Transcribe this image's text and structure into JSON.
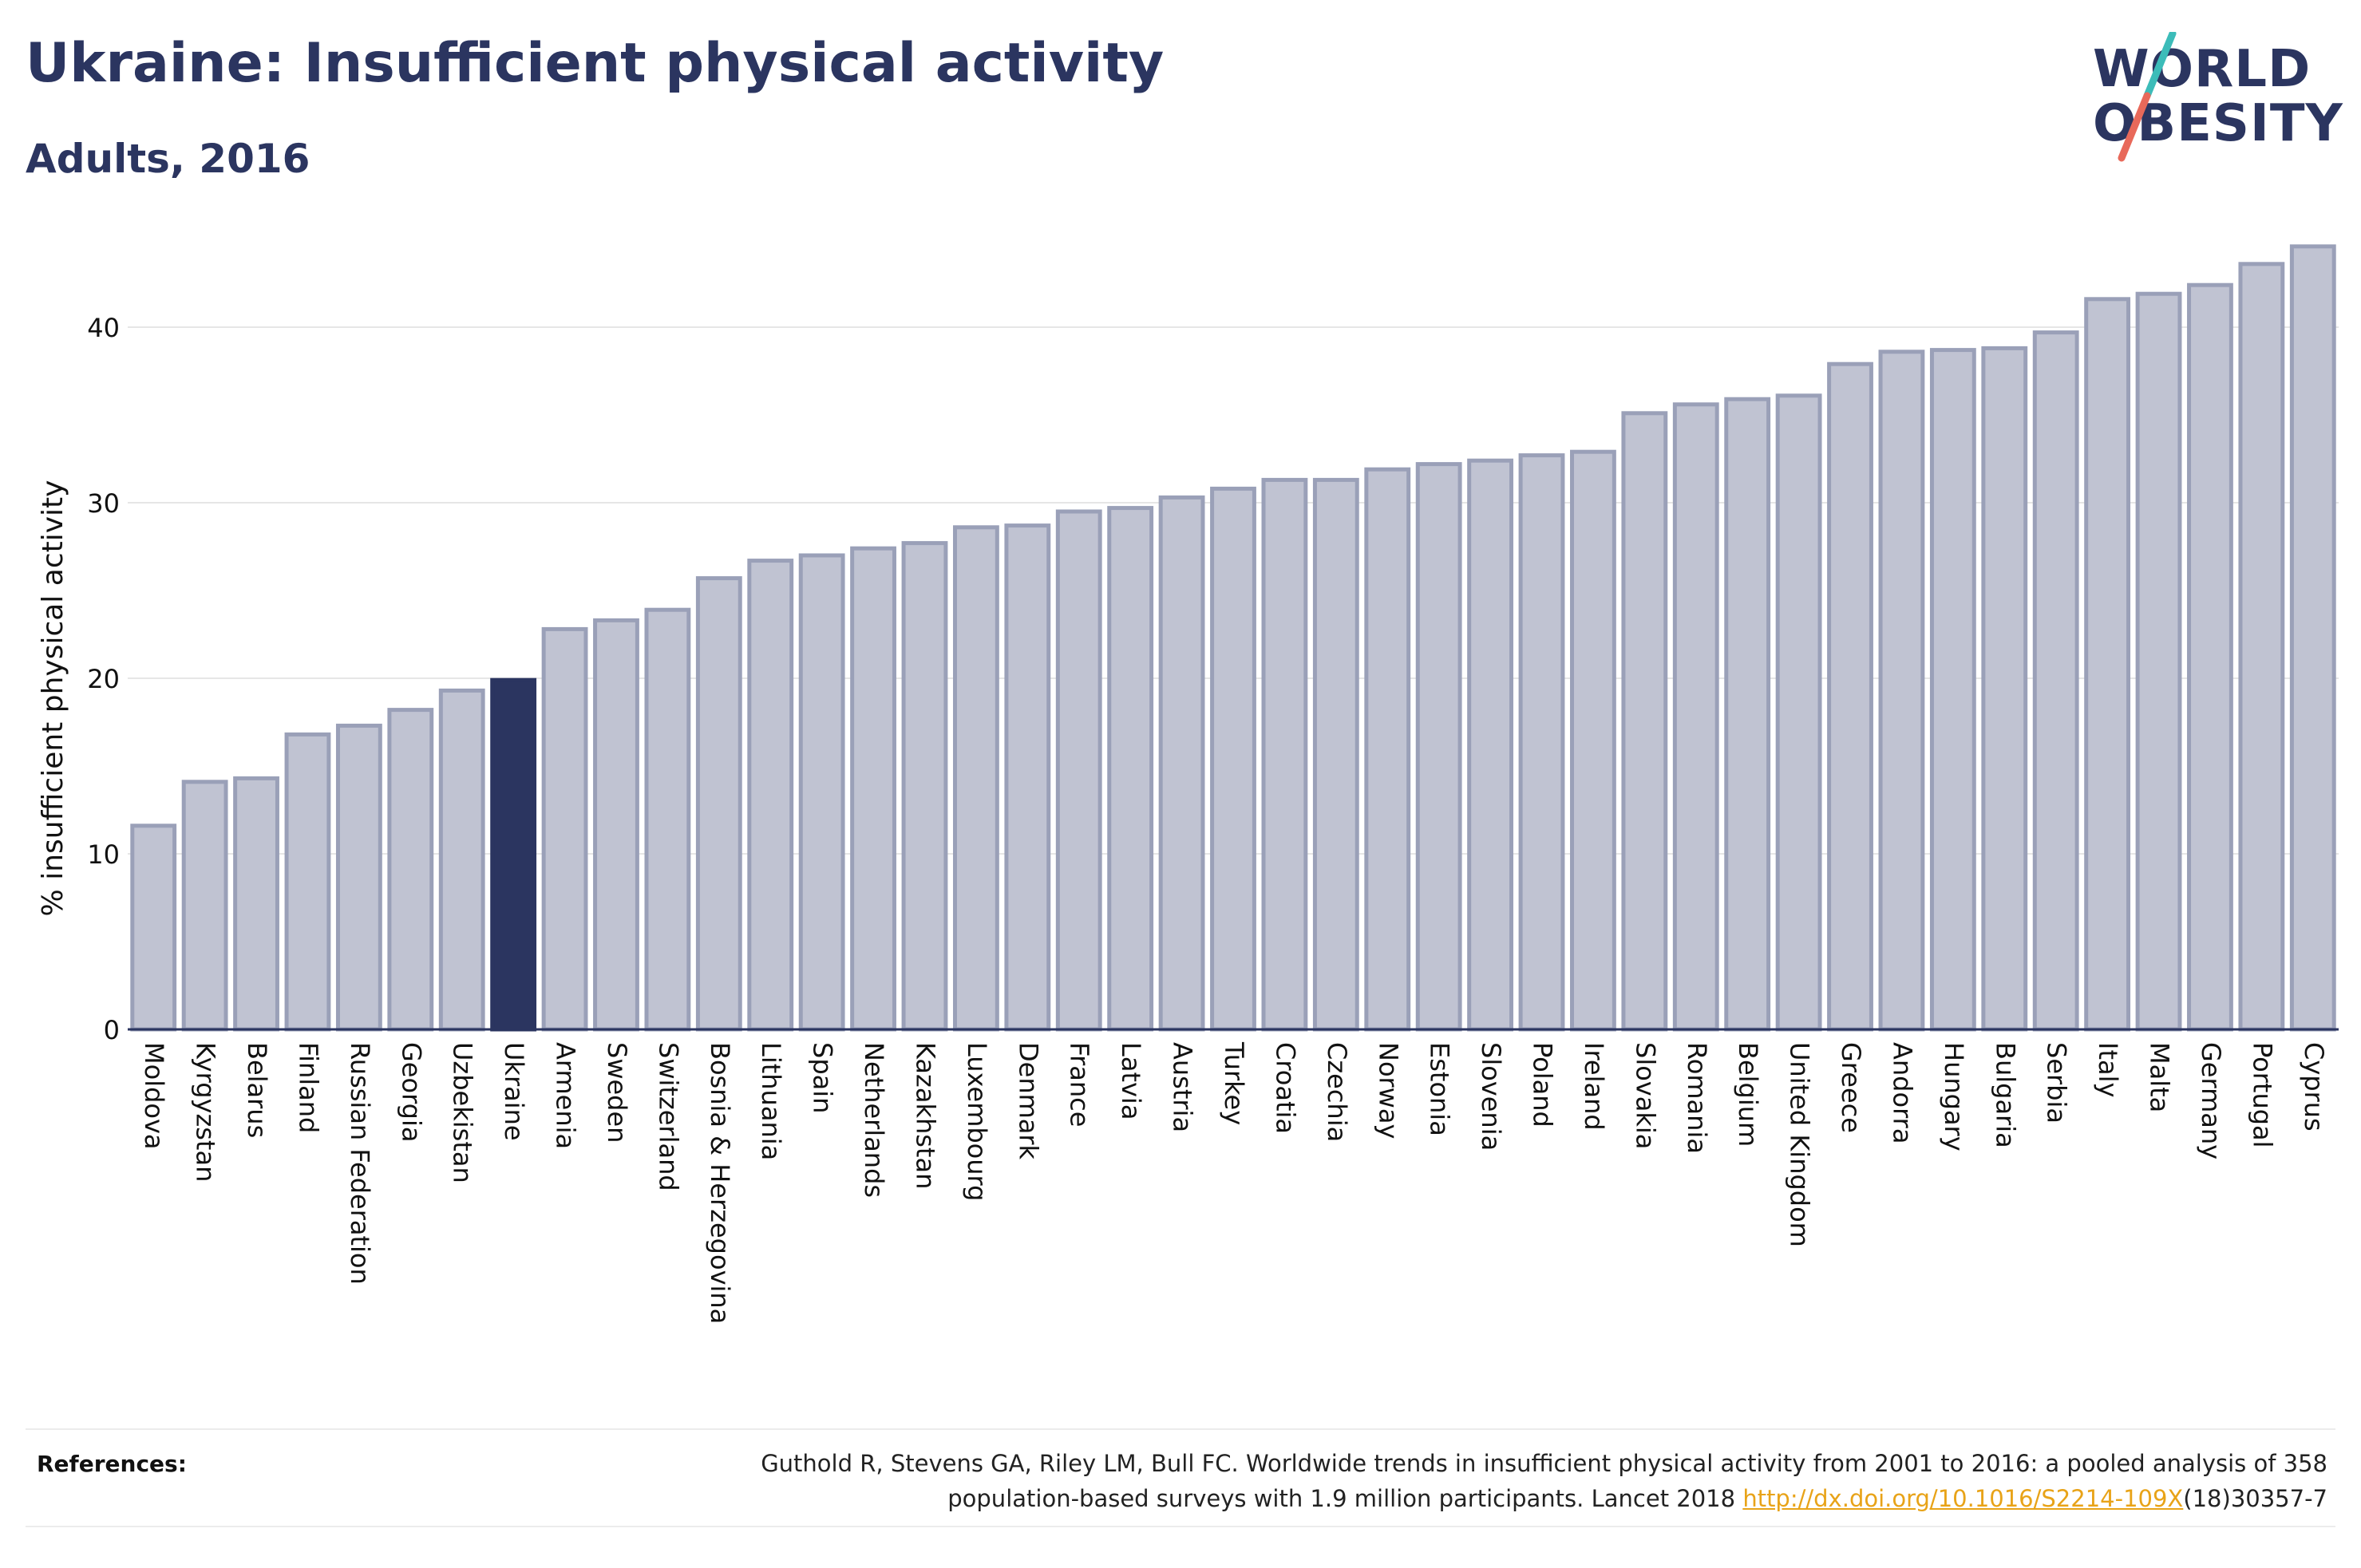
{
  "header": {
    "title": "Ukraine: Insufficient physical activity",
    "subtitle": "Adults, 2016"
  },
  "logo": {
    "line1": "WORLD",
    "line2": "OBESITY",
    "slash_colors": [
      "#3cbcb9",
      "#e8695a"
    ]
  },
  "colors": {
    "bar": "#c0c3d2",
    "bar_border": "#9aa0b8",
    "highlight": "#2b3560",
    "text": "#2b3560"
  },
  "chart_data": {
    "type": "bar",
    "title": "Ukraine: Insufficient physical activity",
    "subtitle": "Adults, 2016",
    "xlabel": "",
    "ylabel": "% insufficient physical activity",
    "ylim": [
      0,
      45
    ],
    "yticks": [
      0,
      10,
      20,
      30,
      40
    ],
    "grid": true,
    "highlight": "Ukraine",
    "categories": [
      "Moldova",
      "Kyrgyzstan",
      "Belarus",
      "Finland",
      "Russian Federation",
      "Georgia",
      "Uzbekistan",
      "Ukraine",
      "Armenia",
      "Sweden",
      "Switzerland",
      "Bosnia & Herzegovina",
      "Lithuania",
      "Spain",
      "Netherlands",
      "Kazakhstan",
      "Luxembourg",
      "Denmark",
      "France",
      "Latvia",
      "Austria",
      "Turkey",
      "Croatia",
      "Czechia",
      "Norway",
      "Estonia",
      "Slovenia",
      "Poland",
      "Ireland",
      "Slovakia",
      "Romania",
      "Belgium",
      "United Kingdom",
      "Greece",
      "Andorra",
      "Hungary",
      "Bulgaria",
      "Serbia",
      "Italy",
      "Malta",
      "Germany",
      "Portugal",
      "Cyprus"
    ],
    "values": [
      11.6,
      14.1,
      14.3,
      16.8,
      17.3,
      18.2,
      19.3,
      19.9,
      22.8,
      23.3,
      23.9,
      25.7,
      26.7,
      27.0,
      27.4,
      27.7,
      28.6,
      28.7,
      29.5,
      29.7,
      30.3,
      30.8,
      31.3,
      31.3,
      31.9,
      32.2,
      32.4,
      32.7,
      32.9,
      35.1,
      35.6,
      35.9,
      36.1,
      37.9,
      38.6,
      38.7,
      38.8,
      39.7,
      41.6,
      41.9,
      42.4,
      43.6,
      44.6
    ]
  },
  "references": {
    "label": "References:",
    "text_line1": "Guthold R, Stevens GA, Riley LM, Bull FC. Worldwide trends in insufficient physical activity from 2001 to 2016: a pooled analysis of 358",
    "text_line2_prefix": "population-based surveys with 1.9 million participants. Lancet 2018 ",
    "link_text": "http://dx.doi.org/10.1016/S2214-109X",
    "text_line2_suffix": "(18)30357-7"
  }
}
